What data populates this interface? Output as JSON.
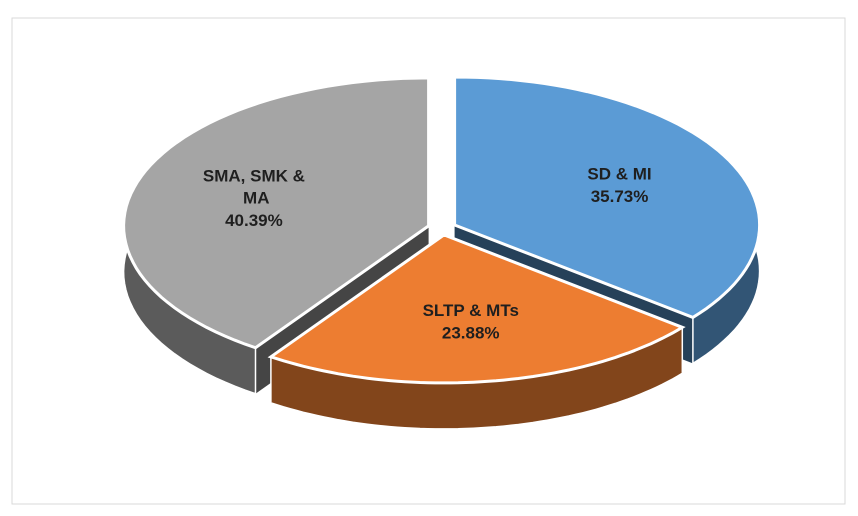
{
  "chart_data": {
    "type": "pie3d",
    "categories": [
      "SD & MI",
      "SLTP & MTs",
      "SMA, SMK & MA"
    ],
    "values": [
      35.73,
      23.88,
      40.39
    ],
    "value_labels": [
      "35.73%",
      "23.88%",
      "40.39%"
    ],
    "colors": [
      "#5b9bd5",
      "#ed7d31",
      "#a5a5a5"
    ]
  }
}
